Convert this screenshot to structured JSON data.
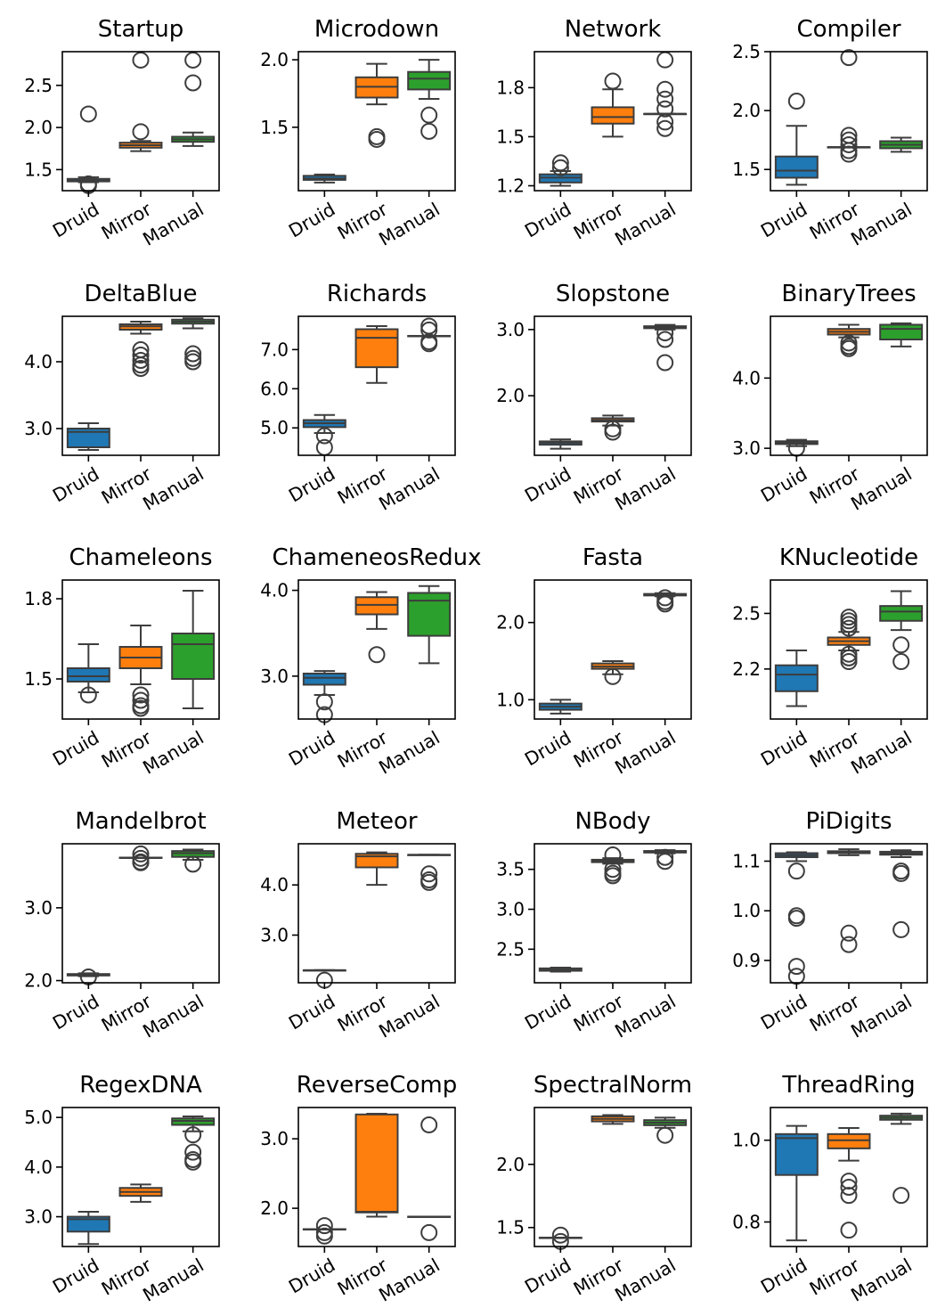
{
  "colors": {
    "Druid": "#1f77b4",
    "Mirror": "#ff7f0e",
    "Manual": "#2ca02c",
    "edge": "#3d3d3d"
  },
  "chart_data": [
    {
      "type": "box",
      "title": "Startup",
      "categories": [
        "Druid",
        "Mirror",
        "Manual"
      ],
      "ylim": [
        1.25,
        2.9
      ],
      "yticks": [
        1.5,
        2.0,
        2.5
      ],
      "ytick_labels": [
        "1.5",
        "2.0",
        "2.5"
      ],
      "boxes": [
        {
          "q1": 1.36,
          "median": 1.37,
          "q3": 1.39,
          "whislo": 1.35,
          "whishi": 1.41,
          "fliers": [
            2.16,
            1.33,
            1.31
          ]
        },
        {
          "q1": 1.76,
          "median": 1.79,
          "q3": 1.82,
          "whislo": 1.72,
          "whishi": 1.84,
          "fliers": [
            1.95,
            2.8
          ]
        },
        {
          "q1": 1.83,
          "median": 1.86,
          "q3": 1.89,
          "whislo": 1.78,
          "whishi": 1.94,
          "fliers": [
            2.53,
            2.8
          ]
        }
      ]
    },
    {
      "type": "box",
      "title": "Microdown",
      "categories": [
        "Druid",
        "Mirror",
        "Manual"
      ],
      "ylim": [
        1.03,
        2.06
      ],
      "yticks": [
        1.5,
        2.0
      ],
      "ytick_labels": [
        "1.5",
        "2.0"
      ],
      "boxes": [
        {
          "q1": 1.11,
          "median": 1.12,
          "q3": 1.14,
          "whislo": 1.09,
          "whishi": 1.15,
          "fliers": []
        },
        {
          "q1": 1.72,
          "median": 1.8,
          "q3": 1.87,
          "whislo": 1.67,
          "whishi": 1.97,
          "fliers": [
            1.41,
            1.43
          ]
        },
        {
          "q1": 1.78,
          "median": 1.86,
          "q3": 1.91,
          "whislo": 1.71,
          "whishi": 2.0,
          "fliers": [
            1.59,
            1.47
          ]
        }
      ]
    },
    {
      "type": "box",
      "title": "Network",
      "categories": [
        "Druid",
        "Mirror",
        "Manual"
      ],
      "ylim": [
        1.17,
        2.02
      ],
      "yticks": [
        1.2,
        1.5,
        1.8
      ],
      "ytick_labels": [
        "1.2",
        "1.5",
        "1.8"
      ],
      "boxes": [
        {
          "q1": 1.22,
          "median": 1.25,
          "q3": 1.27,
          "whislo": 1.2,
          "whishi": 1.29,
          "fliers": [
            1.31,
            1.34
          ]
        },
        {
          "q1": 1.58,
          "median": 1.62,
          "q3": 1.68,
          "whislo": 1.5,
          "whishi": 1.79,
          "fliers": [
            1.84
          ]
        },
        {
          "q1": 1.64,
          "median": 1.64,
          "q3": 1.64,
          "whislo": 1.64,
          "whishi": 1.64,
          "fliers": [
            1.97,
            1.79,
            1.73,
            1.67,
            1.59,
            1.55
          ]
        }
      ]
    },
    {
      "type": "box",
      "title": "Compiler",
      "categories": [
        "Druid",
        "Mirror",
        "Manual"
      ],
      "ylim": [
        1.32,
        2.5
      ],
      "yticks": [
        1.5,
        2.0,
        2.5
      ],
      "ytick_labels": [
        "1.5",
        "2.0",
        "2.5"
      ],
      "boxes": [
        {
          "q1": 1.43,
          "median": 1.49,
          "q3": 1.61,
          "whislo": 1.37,
          "whishi": 1.87,
          "fliers": [
            2.08
          ]
        },
        {
          "q1": 1.69,
          "median": 1.69,
          "q3": 1.69,
          "whislo": 1.69,
          "whishi": 1.69,
          "fliers": [
            2.45,
            1.79,
            1.75,
            1.71,
            1.66,
            1.63
          ]
        },
        {
          "q1": 1.68,
          "median": 1.71,
          "q3": 1.74,
          "whislo": 1.65,
          "whishi": 1.77,
          "fliers": []
        }
      ]
    },
    {
      "type": "box",
      "title": "DeltaBlue",
      "categories": [
        "Druid",
        "Mirror",
        "Manual"
      ],
      "ylim": [
        2.6,
        4.68
      ],
      "yticks": [
        3.0,
        4.0
      ],
      "ytick_labels": [
        "3.0",
        "4.0"
      ],
      "boxes": [
        {
          "q1": 2.72,
          "median": 2.95,
          "q3": 3.0,
          "whislo": 2.68,
          "whishi": 3.08,
          "fliers": []
        },
        {
          "q1": 4.48,
          "median": 4.53,
          "q3": 4.56,
          "whislo": 4.42,
          "whishi": 4.6,
          "fliers": [
            4.18,
            4.1,
            4.02,
            3.95,
            3.9
          ]
        },
        {
          "q1": 4.57,
          "median": 4.6,
          "q3": 4.63,
          "whislo": 4.5,
          "whishi": 4.65,
          "fliers": [
            4.12,
            4.05,
            4.0
          ]
        }
      ]
    },
    {
      "type": "box",
      "title": "Richards",
      "categories": [
        "Druid",
        "Mirror",
        "Manual"
      ],
      "ylim": [
        4.3,
        7.85
      ],
      "yticks": [
        5.0,
        6.0,
        7.0
      ],
      "ytick_labels": [
        "5.0",
        "6.0",
        "7.0"
      ],
      "boxes": [
        {
          "q1": 5.02,
          "median": 5.12,
          "q3": 5.2,
          "whislo": 4.87,
          "whishi": 5.33,
          "fliers": [
            4.8,
            4.5
          ]
        },
        {
          "q1": 6.55,
          "median": 7.3,
          "q3": 7.52,
          "whislo": 6.15,
          "whishi": 7.6,
          "fliers": []
        },
        {
          "q1": 7.35,
          "median": 7.35,
          "q3": 7.35,
          "whislo": 7.35,
          "whishi": 7.35,
          "fliers": [
            7.6,
            7.5,
            7.2,
            7.15
          ]
        }
      ]
    },
    {
      "type": "box",
      "title": "Slopstone",
      "categories": [
        "Druid",
        "Mirror",
        "Manual"
      ],
      "ylim": [
        1.1,
        3.2
      ],
      "yticks": [
        2.0,
        3.0
      ],
      "ytick_labels": [
        "2.0",
        "3.0"
      ],
      "boxes": [
        {
          "q1": 1.26,
          "median": 1.29,
          "q3": 1.31,
          "whislo": 1.2,
          "whishi": 1.34,
          "fliers": []
        },
        {
          "q1": 1.61,
          "median": 1.63,
          "q3": 1.66,
          "whislo": 1.55,
          "whishi": 1.7,
          "fliers": [
            1.5,
            1.45
          ]
        },
        {
          "q1": 3.02,
          "median": 3.04,
          "q3": 3.05,
          "whislo": 3.0,
          "whishi": 3.07,
          "fliers": [
            2.95,
            2.85,
            2.5
          ]
        }
      ]
    },
    {
      "type": "box",
      "title": "BinaryTrees",
      "categories": [
        "Druid",
        "Mirror",
        "Manual"
      ],
      "ylim": [
        2.9,
        4.88
      ],
      "yticks": [
        3.0,
        4.0
      ],
      "ytick_labels": [
        "3.0",
        "4.0"
      ],
      "boxes": [
        {
          "q1": 3.06,
          "median": 3.08,
          "q3": 3.1,
          "whislo": 3.03,
          "whishi": 3.12,
          "fliers": [
            3.0
          ]
        },
        {
          "q1": 4.62,
          "median": 4.66,
          "q3": 4.7,
          "whislo": 4.58,
          "whishi": 4.76,
          "fliers": [
            4.5,
            4.45,
            4.42
          ]
        },
        {
          "q1": 4.55,
          "median": 4.7,
          "q3": 4.76,
          "whislo": 4.45,
          "whishi": 4.78,
          "fliers": []
        }
      ]
    },
    {
      "type": "box",
      "title": "Chameleons",
      "categories": [
        "Druid",
        "Mirror",
        "Manual"
      ],
      "ylim": [
        1.35,
        1.87
      ],
      "yticks": [
        1.5,
        1.8
      ],
      "ytick_labels": [
        "1.5",
        "1.8"
      ],
      "boxes": [
        {
          "q1": 1.49,
          "median": 1.51,
          "q3": 1.54,
          "whislo": 1.45,
          "whishi": 1.63,
          "fliers": [
            1.44
          ]
        },
        {
          "q1": 1.54,
          "median": 1.58,
          "q3": 1.62,
          "whislo": 1.48,
          "whishi": 1.7,
          "fliers": [
            1.44,
            1.42,
            1.4,
            1.39
          ]
        },
        {
          "q1": 1.5,
          "median": 1.63,
          "q3": 1.67,
          "whislo": 1.39,
          "whishi": 1.83,
          "fliers": []
        }
      ]
    },
    {
      "type": "box",
      "title": "ChameneosRedux",
      "categories": [
        "Druid",
        "Mirror",
        "Manual"
      ],
      "ylim": [
        2.5,
        4.12
      ],
      "yticks": [
        3.0,
        4.0
      ],
      "ytick_labels": [
        "3.0",
        "4.0"
      ],
      "boxes": [
        {
          "q1": 2.9,
          "median": 2.98,
          "q3": 3.03,
          "whislo": 2.78,
          "whishi": 3.06,
          "fliers": [
            2.7,
            2.55
          ]
        },
        {
          "q1": 3.72,
          "median": 3.83,
          "q3": 3.92,
          "whislo": 3.55,
          "whishi": 3.98,
          "fliers": [
            3.25
          ]
        },
        {
          "q1": 3.47,
          "median": 3.88,
          "q3": 3.97,
          "whislo": 3.15,
          "whishi": 4.05,
          "fliers": []
        }
      ]
    },
    {
      "type": "box",
      "title": "Fasta",
      "categories": [
        "Druid",
        "Mirror",
        "Manual"
      ],
      "ylim": [
        0.75,
        2.55
      ],
      "yticks": [
        1.0,
        2.0
      ],
      "ytick_labels": [
        "1.0",
        "2.0"
      ],
      "boxes": [
        {
          "q1": 0.87,
          "median": 0.91,
          "q3": 0.95,
          "whislo": 0.82,
          "whishi": 1.0,
          "fliers": []
        },
        {
          "q1": 1.4,
          "median": 1.43,
          "q3": 1.47,
          "whislo": 1.33,
          "whishi": 1.5,
          "fliers": [
            1.3
          ]
        },
        {
          "q1": 2.35,
          "median": 2.36,
          "q3": 2.37,
          "whislo": 2.34,
          "whishi": 2.38,
          "fliers": [
            2.32,
            2.27,
            2.24
          ]
        }
      ]
    },
    {
      "type": "box",
      "title": "KNucleotide",
      "categories": [
        "Druid",
        "Mirror",
        "Manual"
      ],
      "ylim": [
        1.93,
        2.68
      ],
      "yticks": [
        2.2,
        2.5
      ],
      "ytick_labels": [
        "2.2",
        "2.5"
      ],
      "boxes": [
        {
          "q1": 2.08,
          "median": 2.17,
          "q3": 2.22,
          "whislo": 2.0,
          "whishi": 2.3,
          "fliers": []
        },
        {
          "q1": 2.33,
          "median": 2.35,
          "q3": 2.37,
          "whislo": 2.3,
          "whishi": 2.4,
          "fliers": [
            2.48,
            2.46,
            2.44,
            2.42,
            2.28,
            2.26,
            2.24
          ]
        },
        {
          "q1": 2.46,
          "median": 2.51,
          "q3": 2.54,
          "whislo": 2.41,
          "whishi": 2.62,
          "fliers": [
            2.33,
            2.24
          ]
        }
      ]
    },
    {
      "type": "box",
      "title": "Mandelbrot",
      "categories": [
        "Druid",
        "Mirror",
        "Manual"
      ],
      "ylim": [
        1.97,
        3.88
      ],
      "yticks": [
        2.0,
        3.0
      ],
      "ytick_labels": [
        "2.0",
        "3.0"
      ],
      "boxes": [
        {
          "q1": 2.07,
          "median": 2.08,
          "q3": 2.09,
          "whislo": 2.06,
          "whishi": 2.1,
          "fliers": [
            2.05
          ]
        },
        {
          "q1": 3.69,
          "median": 3.69,
          "q3": 3.69,
          "whislo": 3.69,
          "whishi": 3.69,
          "fliers": [
            3.74,
            3.68,
            3.63,
            3.62
          ]
        },
        {
          "q1": 3.7,
          "median": 3.75,
          "q3": 3.78,
          "whislo": 3.66,
          "whishi": 3.8,
          "fliers": [
            3.6
          ]
        }
      ]
    },
    {
      "type": "box",
      "title": "Meteor",
      "categories": [
        "Druid",
        "Mirror",
        "Manual"
      ],
      "ylim": [
        2.05,
        4.82
      ],
      "yticks": [
        3.0,
        4.0
      ],
      "ytick_labels": [
        "3.0",
        "4.0"
      ],
      "boxes": [
        {
          "q1": 2.3,
          "median": 2.3,
          "q3": 2.3,
          "whislo": 2.3,
          "whishi": 2.3,
          "fliers": [
            2.1
          ]
        },
        {
          "q1": 4.35,
          "median": 4.57,
          "q3": 4.62,
          "whislo": 4.0,
          "whishi": 4.65,
          "fliers": []
        },
        {
          "q1": 4.6,
          "median": 4.6,
          "q3": 4.6,
          "whislo": 4.6,
          "whishi": 4.6,
          "fliers": [
            4.22,
            4.1,
            4.05
          ]
        }
      ]
    },
    {
      "type": "box",
      "title": "NBody",
      "categories": [
        "Druid",
        "Mirror",
        "Manual"
      ],
      "ylim": [
        2.08,
        3.82
      ],
      "yticks": [
        2.5,
        3.0,
        3.5
      ],
      "ytick_labels": [
        "2.5",
        "3.0",
        "3.5"
      ],
      "boxes": [
        {
          "q1": 2.23,
          "median": 2.24,
          "q3": 2.26,
          "whislo": 2.22,
          "whishi": 2.27,
          "fliers": []
        },
        {
          "q1": 3.59,
          "median": 3.61,
          "q3": 3.62,
          "whislo": 3.57,
          "whishi": 3.64,
          "fliers": [
            3.68,
            3.5,
            3.45,
            3.42
          ]
        },
        {
          "q1": 3.71,
          "median": 3.72,
          "q3": 3.73,
          "whislo": 3.7,
          "whishi": 3.74,
          "fliers": [
            3.65,
            3.6
          ]
        }
      ]
    },
    {
      "type": "box",
      "title": "PiDigits",
      "categories": [
        "Druid",
        "Mirror",
        "Manual"
      ],
      "ylim": [
        0.855,
        1.135
      ],
      "yticks": [
        0.9,
        1.0,
        1.1
      ],
      "ytick_labels": [
        "0.9",
        "1.0",
        "1.1"
      ],
      "boxes": [
        {
          "q1": 1.108,
          "median": 1.112,
          "q3": 1.116,
          "whislo": 1.1,
          "whishi": 1.118,
          "fliers": [
            1.08,
            0.99,
            0.985,
            0.888,
            0.868
          ]
        },
        {
          "q1": 1.116,
          "median": 1.118,
          "q3": 1.12,
          "whislo": 1.112,
          "whishi": 1.124,
          "fliers": [
            0.955,
            0.932
          ]
        },
        {
          "q1": 1.113,
          "median": 1.116,
          "q3": 1.119,
          "whislo": 1.108,
          "whishi": 1.122,
          "fliers": [
            1.08,
            1.075,
            0.962
          ]
        }
      ]
    },
    {
      "type": "box",
      "title": "RegexDNA",
      "categories": [
        "Druid",
        "Mirror",
        "Manual"
      ],
      "ylim": [
        2.4,
        5.2
      ],
      "yticks": [
        3.0,
        4.0,
        5.0
      ],
      "ytick_labels": [
        "3.0",
        "4.0",
        "5.0"
      ],
      "boxes": [
        {
          "q1": 2.7,
          "median": 2.95,
          "q3": 3.0,
          "whislo": 2.45,
          "whishi": 3.1,
          "fliers": []
        },
        {
          "q1": 3.42,
          "median": 3.5,
          "q3": 3.58,
          "whislo": 3.3,
          "whishi": 3.65,
          "fliers": []
        },
        {
          "q1": 4.85,
          "median": 4.93,
          "q3": 4.98,
          "whislo": 4.72,
          "whishi": 5.02,
          "fliers": [
            4.65,
            4.3,
            4.15,
            4.1
          ]
        }
      ]
    },
    {
      "type": "box",
      "title": "ReverseComp",
      "categories": [
        "Druid",
        "Mirror",
        "Manual"
      ],
      "ylim": [
        1.45,
        3.45
      ],
      "yticks": [
        2.0,
        3.0
      ],
      "ytick_labels": [
        "2.0",
        "3.0"
      ],
      "boxes": [
        {
          "q1": 1.7,
          "median": 1.7,
          "q3": 1.7,
          "whislo": 1.7,
          "whishi": 1.7,
          "fliers": [
            1.75,
            1.65,
            1.6
          ]
        },
        {
          "q1": 1.94,
          "median": 1.95,
          "q3": 3.35,
          "whislo": 1.88,
          "whishi": 3.36,
          "fliers": []
        },
        {
          "q1": 1.88,
          "median": 1.88,
          "q3": 1.88,
          "whislo": 1.88,
          "whishi": 1.88,
          "fliers": [
            3.2,
            1.65
          ]
        }
      ]
    },
    {
      "type": "box",
      "title": "SpectralNorm",
      "categories": [
        "Druid",
        "Mirror",
        "Manual"
      ],
      "ylim": [
        1.35,
        2.45
      ],
      "yticks": [
        1.5,
        2.0
      ],
      "ytick_labels": [
        "1.5",
        "2.0"
      ],
      "boxes": [
        {
          "q1": 1.42,
          "median": 1.42,
          "q3": 1.42,
          "whislo": 1.42,
          "whishi": 1.42,
          "fliers": [
            1.44,
            1.39
          ]
        },
        {
          "q1": 2.34,
          "median": 2.36,
          "q3": 2.38,
          "whislo": 2.32,
          "whishi": 2.39,
          "fliers": []
        },
        {
          "q1": 2.31,
          "median": 2.33,
          "q3": 2.35,
          "whislo": 2.29,
          "whishi": 2.37,
          "fliers": [
            2.23
          ]
        }
      ]
    },
    {
      "type": "box",
      "title": "ThreadRing",
      "categories": [
        "Druid",
        "Mirror",
        "Manual"
      ],
      "ylim": [
        0.74,
        1.08
      ],
      "yticks": [
        0.8,
        1.0
      ],
      "ytick_labels": [
        "0.8",
        "1.0"
      ],
      "boxes": [
        {
          "q1": 0.915,
          "median": 1.005,
          "q3": 1.015,
          "whislo": 0.755,
          "whishi": 1.035,
          "fliers": []
        },
        {
          "q1": 0.98,
          "median": 1.0,
          "q3": 1.015,
          "whislo": 0.95,
          "whishi": 1.03,
          "fliers": [
            0.9,
            0.885,
            0.865,
            0.78
          ]
        },
        {
          "q1": 1.05,
          "median": 1.055,
          "q3": 1.06,
          "whislo": 1.04,
          "whishi": 1.065,
          "fliers": [
            0.865
          ]
        }
      ]
    }
  ]
}
